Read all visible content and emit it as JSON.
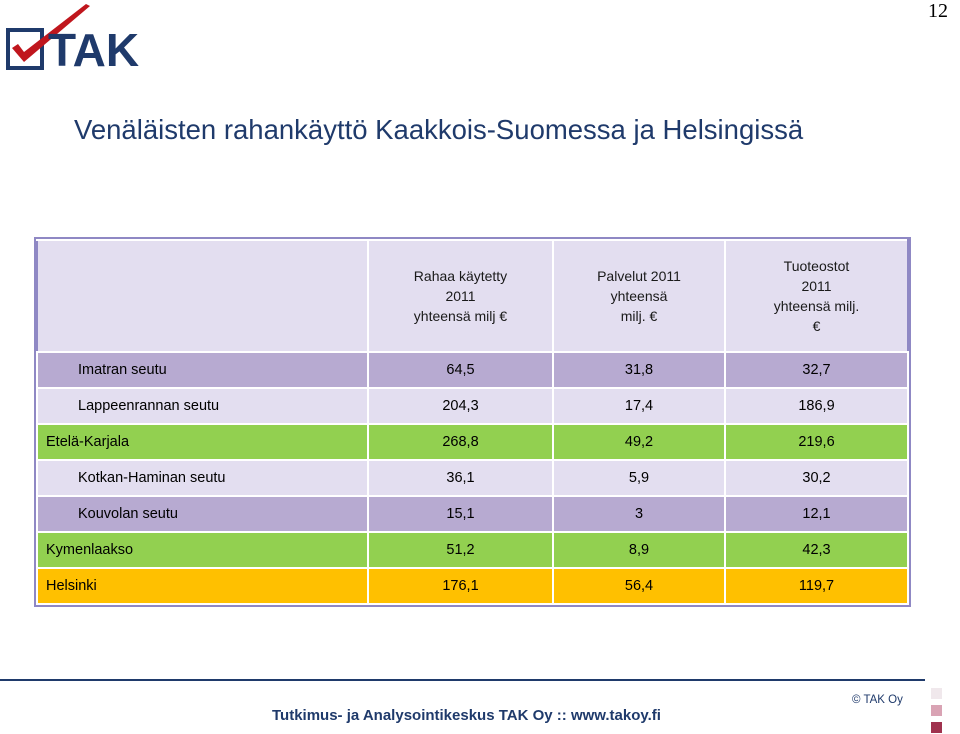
{
  "page_number": "12",
  "logo": {
    "text": "TAK"
  },
  "title": "Venäläisten rahankäyttö Kaakkois-Suomessa ja Helsingissä",
  "table": {
    "headers": [
      "",
      "Rahaa käytetty 2011 yhteensä milj €",
      "Palvelut 2011 yhteensä milj. €",
      "Tuoteostot 2011 yhteensä milj. €"
    ],
    "header_lines": [
      [],
      [
        "Rahaa käytetty",
        "2011",
        "yhteensä milj €"
      ],
      [
        "Palvelut 2011",
        "yhteensä",
        "milj. €"
      ],
      [
        "Tuoteostot",
        "2011",
        "yhteensä milj.",
        "€"
      ]
    ],
    "rows": [
      {
        "name": "Imatran seutu",
        "values": [
          "64,5",
          "31,8",
          "32,7"
        ],
        "style": "purple",
        "indent": true
      },
      {
        "name": "Lappeenrannan seutu",
        "values": [
          "204,3",
          "17,4",
          "186,9"
        ],
        "style": "light",
        "indent": true
      },
      {
        "name": "Etelä-Karjala",
        "values": [
          "268,8",
          "49,2",
          "219,6"
        ],
        "style": "green",
        "indent": false
      },
      {
        "name": "Kotkan-Haminan seutu",
        "values": [
          "36,1",
          "5,9",
          "30,2"
        ],
        "style": "light",
        "indent": true
      },
      {
        "name": "Kouvolan seutu",
        "values": [
          "15,1",
          "3",
          "12,1"
        ],
        "style": "purple",
        "indent": true
      },
      {
        "name": "Kymenlaakso",
        "values": [
          "51,2",
          "8,9",
          "42,3"
        ],
        "style": "green",
        "indent": false
      },
      {
        "name": "Helsinki",
        "values": [
          "176,1",
          "56,4",
          "119,7"
        ],
        "style": "yellow",
        "indent": false
      }
    ]
  },
  "footer": {
    "text": "Tutkimus- ja Analysointikeskus TAK Oy  ::  www.takoy.fi",
    "copyright": "© TAK Oy"
  },
  "colors": {
    "title": "#1f3a6b",
    "purple_row": "#b7aad1",
    "light_row": "#e3def0",
    "green_row": "#92d050",
    "yellow_row": "#ffc000",
    "logo_red": "#c0161d",
    "logo_blue": "#1f3a6b"
  }
}
